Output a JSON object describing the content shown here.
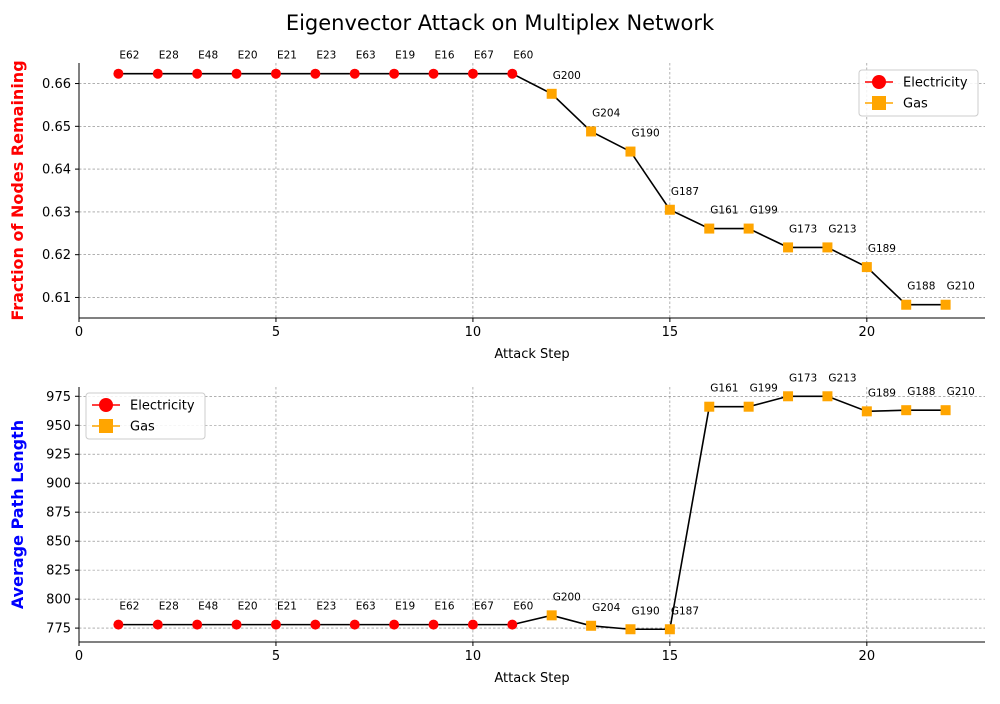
{
  "figure": {
    "title": "Eigenvector Attack on Multiplex Network"
  },
  "colors": {
    "electricity": "#ff0000",
    "gas": "#ffa500",
    "line": "#000000",
    "grid": "#808080"
  },
  "chart_data": [
    {
      "type": "line",
      "ylabel": "Fraction of Nodes Remaining",
      "ylabel_color": "#ff0000",
      "xlabel": "Attack Step",
      "xlim": [
        0,
        23
      ],
      "ylim": [
        0.6052,
        0.6648
      ],
      "xticks": [
        0,
        5,
        10,
        15,
        20
      ],
      "yticks": [
        0.61,
        0.62,
        0.63,
        0.64,
        0.65,
        0.66
      ],
      "grid": true,
      "legend_position": "top-right",
      "legend": [
        {
          "label": "Electricity",
          "marker": "circle",
          "color_key": "electricity"
        },
        {
          "label": "Gas",
          "marker": "square",
          "color_key": "gas"
        }
      ],
      "x": [
        1,
        2,
        3,
        4,
        5,
        6,
        7,
        8,
        9,
        10,
        11,
        12,
        13,
        14,
        15,
        16,
        17,
        18,
        19,
        20,
        21,
        22
      ],
      "y": [
        0.6623,
        0.6623,
        0.6623,
        0.6623,
        0.6623,
        0.6623,
        0.6623,
        0.6623,
        0.6623,
        0.6623,
        0.6623,
        0.6576,
        0.6488,
        0.6441,
        0.6305,
        0.6261,
        0.6261,
        0.6217,
        0.6217,
        0.6171,
        0.6083,
        0.6083
      ],
      "labels": [
        "E62",
        "E28",
        "E48",
        "E20",
        "E21",
        "E23",
        "E63",
        "E19",
        "E16",
        "E67",
        "E60",
        "G200",
        "G204",
        "G190",
        "G187",
        "G161",
        "G199",
        "G173",
        "G213",
        "G189",
        "G188",
        "G210"
      ],
      "series_type": [
        "electricity",
        "electricity",
        "electricity",
        "electricity",
        "electricity",
        "electricity",
        "electricity",
        "electricity",
        "electricity",
        "electricity",
        "electricity",
        "gas",
        "gas",
        "gas",
        "gas",
        "gas",
        "gas",
        "gas",
        "gas",
        "gas",
        "gas",
        "gas"
      ]
    },
    {
      "type": "line",
      "ylabel": "Average Path Length",
      "ylabel_color": "#0000ff",
      "xlabel": "Attack Step",
      "xlim": [
        0,
        23
      ],
      "ylim": [
        763,
        983
      ],
      "xticks": [
        0,
        5,
        10,
        15,
        20
      ],
      "yticks": [
        775,
        800,
        825,
        850,
        875,
        900,
        925,
        950,
        975
      ],
      "grid": true,
      "legend_position": "top-left",
      "legend": [
        {
          "label": "Electricity",
          "marker": "circle",
          "color_key": "electricity"
        },
        {
          "label": "Gas",
          "marker": "square",
          "color_key": "gas"
        }
      ],
      "x": [
        1,
        2,
        3,
        4,
        5,
        6,
        7,
        8,
        9,
        10,
        11,
        12,
        13,
        14,
        15,
        16,
        17,
        18,
        19,
        20,
        21,
        22
      ],
      "y": [
        778,
        778,
        778,
        778,
        778,
        778,
        778,
        778,
        778,
        778,
        778,
        786,
        777,
        774,
        774,
        966,
        966,
        975,
        975,
        962,
        963,
        963
      ],
      "labels": [
        "E62",
        "E28",
        "E48",
        "E20",
        "E21",
        "E23",
        "E63",
        "E19",
        "E16",
        "E67",
        "E60",
        "G200",
        "G204",
        "G190",
        "G187",
        "G161",
        "G199",
        "G173",
        "G213",
        "G189",
        "G188",
        "G210"
      ],
      "series_type": [
        "electricity",
        "electricity",
        "electricity",
        "electricity",
        "electricity",
        "electricity",
        "electricity",
        "electricity",
        "electricity",
        "electricity",
        "electricity",
        "gas",
        "gas",
        "gas",
        "gas",
        "gas",
        "gas",
        "gas",
        "gas",
        "gas",
        "gas",
        "gas"
      ]
    }
  ]
}
